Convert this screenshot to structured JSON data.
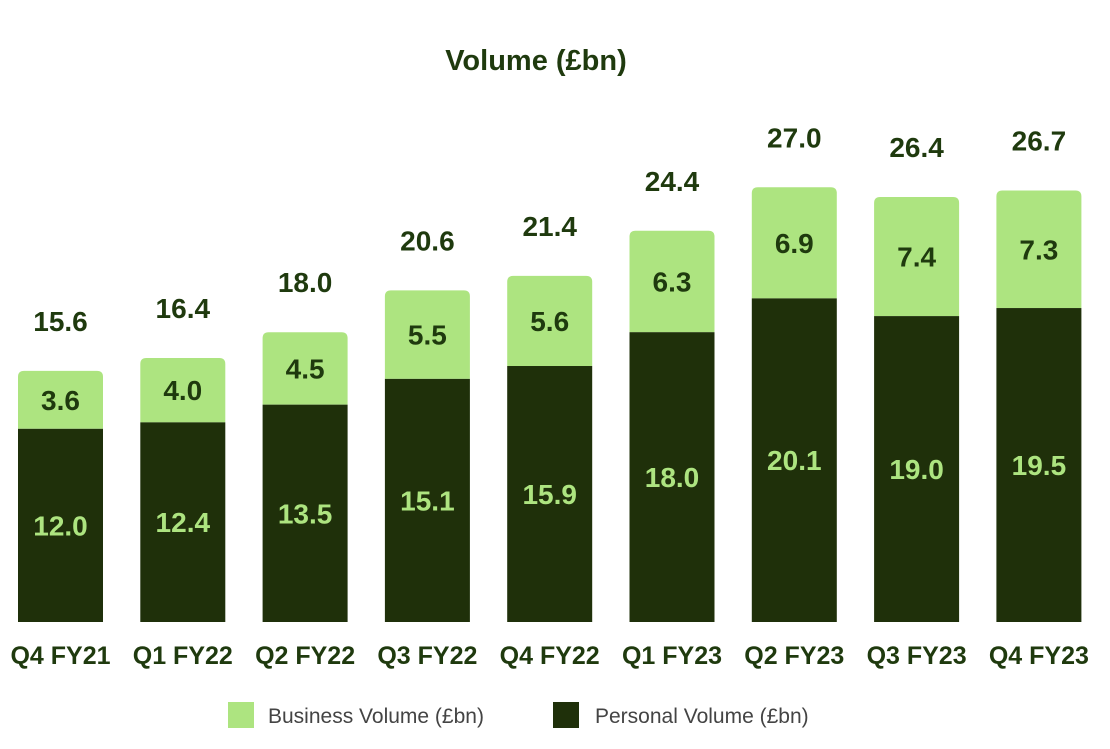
{
  "chart_data": {
    "type": "bar",
    "stacked": true,
    "title": "Volume (£bn)",
    "xlabel": "",
    "ylabel": "",
    "categories": [
      "Q4 FY21",
      "Q1 FY22",
      "Q2 FY22",
      "Q3 FY22",
      "Q4 FY22",
      "Q1 FY23",
      "Q2 FY23",
      "Q3 FY23",
      "Q4 FY23"
    ],
    "series": [
      {
        "name": "Personal Volume (£bn)",
        "color": "#1f300a",
        "values": [
          12.0,
          12.4,
          13.5,
          15.1,
          15.9,
          18.0,
          20.1,
          19.0,
          19.5
        ]
      },
      {
        "name": "Business Volume (£bn)",
        "color": "#ade480",
        "values": [
          3.6,
          4.0,
          4.5,
          5.5,
          5.6,
          6.3,
          6.9,
          7.4,
          7.3
        ]
      }
    ],
    "totals": [
      15.6,
      16.4,
      18.0,
      20.6,
      21.4,
      24.4,
      27.0,
      26.4,
      26.7
    ],
    "legend": [
      "Business Volume (£bn)",
      "Personal Volume (£bn)"
    ],
    "legend_position": "bottom",
    "grid": false,
    "ylim": [
      0,
      30
    ]
  }
}
